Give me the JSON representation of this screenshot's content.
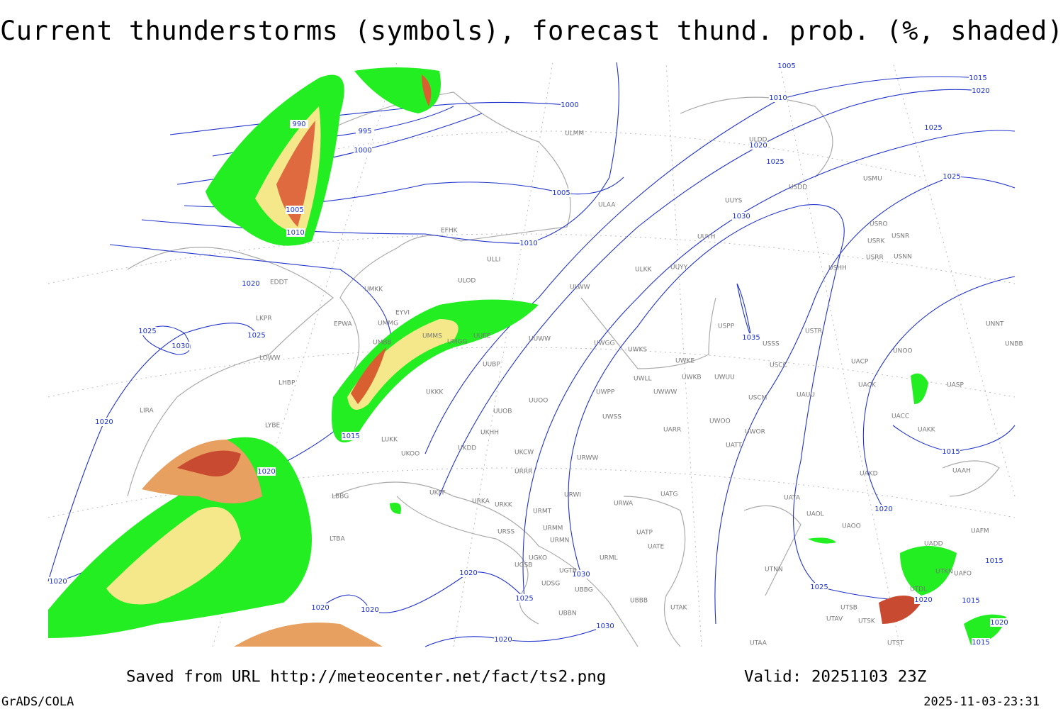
{
  "header": {
    "title": "Current thunderstorms (symbols), forecast thund. prob. (%, shaded)"
  },
  "isobar_labels": [
    "990",
    "995",
    "1000",
    "1000",
    "1005",
    "1010",
    "1005",
    "1010",
    "1020",
    "1025",
    "1025",
    "1030",
    "1020",
    "1015",
    "1020",
    "1020",
    "1020",
    "1020",
    "1020",
    "1025",
    "1030",
    "1030",
    "1020",
    "1005",
    "1010",
    "1015",
    "1020",
    "1025",
    "1020",
    "1025",
    "1025",
    "1030",
    "1035",
    "1015",
    "1020",
    "1025",
    "1020",
    "1015",
    "1015",
    "1020",
    "1015"
  ],
  "stations": [
    "ULMM",
    "ULAA",
    "EFHK",
    "ULLI",
    "ULOD",
    "UMKK",
    "EDDT",
    "EPWA",
    "EYVI",
    "UMMG",
    "UMMS",
    "UMGG",
    "UMBB",
    "UUEE",
    "UUWW",
    "UUBP",
    "UKKK",
    "UUOO",
    "UUOB",
    "UKHH",
    "UKDD",
    "UKCW",
    "UKOO",
    "UKFF",
    "LUKK",
    "URRR",
    "URKA",
    "URKK",
    "URMT",
    "URSS",
    "URMM",
    "URMN",
    "UGKO",
    "UGSB",
    "UGTB",
    "UDSG",
    "UBBG",
    "UBBB",
    "URML",
    "UBBN",
    "UTAK",
    "UWGG",
    "UWKS",
    "UWKE",
    "UWLL",
    "UWWW",
    "UWPP",
    "UWKB",
    "UWUU",
    "UWSS",
    "UWOO",
    "URWW",
    "URWA",
    "URWI",
    "UATG",
    "UATP",
    "UATE",
    "UATT",
    "UARR",
    "UWOR",
    "USCM",
    "USCC",
    "USSS",
    "USTR",
    "USPP",
    "UAUU",
    "USHH",
    "UUYH",
    "UUYS",
    "UUYY",
    "ULWW",
    "ULKK",
    "USDD",
    "USMU",
    "USRO",
    "USRK",
    "USNR",
    "USRR",
    "USNN",
    "UNNT",
    "UNBB",
    "UNOO",
    "UACP",
    "UACK",
    "UASP",
    "UACC",
    "UAKK",
    "UAAH",
    "UAKD",
    "UATA",
    "UAOL",
    "UAOO",
    "UAFM",
    "UADD",
    "UTKN",
    "UAFO",
    "UTNN",
    "UTDL",
    "UTSB",
    "UTAV",
    "UTSK",
    "UTST",
    "UTAA",
    "ULDD",
    "LBBG",
    "LTBA",
    "LYBE",
    "LHBP",
    "LOWW",
    "LKPR",
    "LIRA"
  ],
  "footer": {
    "saved": "Saved from URL http://meteocenter.net/fact/ts2.png",
    "valid": "Valid: 20251103 23Z",
    "software": "GrADS/COLA",
    "timestamp": "2025-11-03-23:31"
  }
}
